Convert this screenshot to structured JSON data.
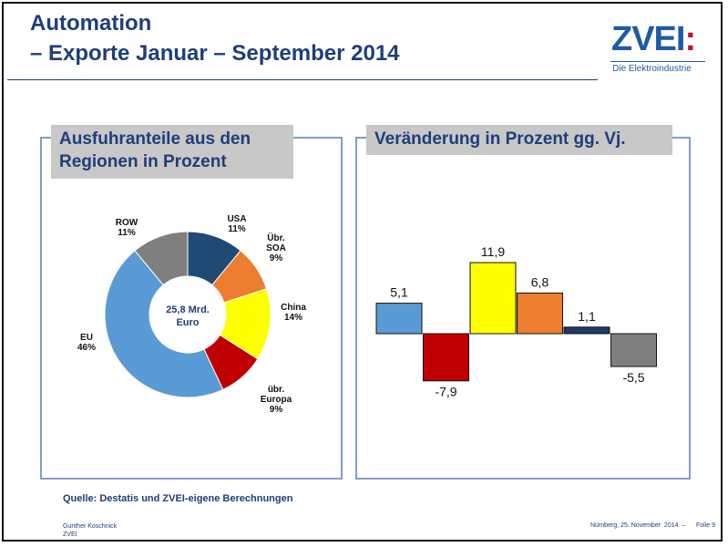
{
  "header": {
    "title_line1": "Automation",
    "title_line2": "– Exporte Januar – September 2014"
  },
  "logo": {
    "name": "ZVEI",
    "colon": ":",
    "subtitle": "Die Elektroindustrie"
  },
  "colors": {
    "title": "#1f3d7a",
    "logo": "#1f5aa6",
    "logo_accent": "#c0182c",
    "panel_border": "#7f9ec7",
    "panel_title_bg": "#c8c8c8"
  },
  "chart_data": [
    {
      "type": "pie",
      "variant": "donut",
      "title": "Ausfuhranteile aus den Regionen in Prozent",
      "center_label": [
        "25,8 Mrd.",
        "Euro"
      ],
      "slices": [
        {
          "label": [
            "USA"
          ],
          "value": 11,
          "value_label": "11%",
          "color": "#1f4a75"
        },
        {
          "label": [
            "Übr.",
            "SOA"
          ],
          "value": 9,
          "value_label": "9%",
          "color": "#ed7d31"
        },
        {
          "label": [
            "China"
          ],
          "value": 14,
          "value_label": "14%",
          "color": "#ffff00"
        },
        {
          "label": [
            "übr.",
            "Europa"
          ],
          "value": 9,
          "value_label": "9%",
          "color": "#c00000"
        },
        {
          "label": [
            "EU"
          ],
          "value": 46,
          "value_label": "46%",
          "color": "#5b9bd5"
        },
        {
          "label": [
            "ROW"
          ],
          "value": 11,
          "value_label": "11%",
          "color": "#7f7f7f"
        }
      ]
    },
    {
      "type": "bar",
      "title": "Veränderung in Prozent gg. Vj.",
      "values": [
        5.1,
        -7.9,
        11.9,
        6.8,
        1.1,
        -5.5
      ],
      "value_labels": [
        "5,1",
        "-7,9",
        "11,9",
        "6,8",
        "1,1",
        "-5,5"
      ],
      "colors": [
        "#5b9bd5",
        "#c00000",
        "#ffff00",
        "#ed7d31",
        "#1f3864",
        "#7f7f7f"
      ],
      "ylim": [
        -12,
        14
      ],
      "grid": false,
      "legend": "none"
    }
  ],
  "footer": {
    "source": "Quelle: Destatis und ZVEI-eigene Berechnungen",
    "author": "Gunther Koschnick",
    "org": "ZVEI",
    "date_page": "Nürnberg, 25. November  2014  –      Folie 9"
  }
}
